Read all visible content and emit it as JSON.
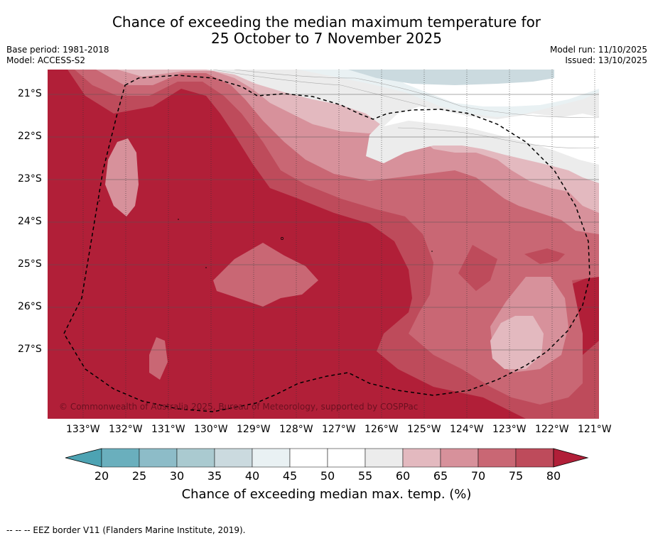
{
  "title": {
    "line1": "Chance of exceeding the median maximum temperature for",
    "line2": "25 October to 7 November 2025"
  },
  "meta": {
    "base_period": "Base period: 1981-2018",
    "model": "Model: ACCESS-S2",
    "model_run": "Model run: 11/10/2025",
    "issued": "Issued: 13/10/2025"
  },
  "map": {
    "credit": "© Commonwealth of Australia 2025, Bureau of Meteorology, supported by COSPPac",
    "lat_labels": [
      "21°S",
      "22°S",
      "23°S",
      "24°S",
      "25°S",
      "26°S",
      "27°S"
    ],
    "lon_labels": [
      "133°W",
      "132°W",
      "131°W",
      "130°W",
      "129°W",
      "128°W",
      "127°W",
      "126°W",
      "125°W",
      "124°W",
      "123°W",
      "122°W",
      "121°W"
    ],
    "lon_range": [
      -133.8,
      -121.1
    ],
    "lat_range": [
      -28.6,
      -20.4
    ]
  },
  "colorbar": {
    "ticks": [
      "20",
      "25",
      "30",
      "35",
      "40",
      "45",
      "50",
      "55",
      "60",
      "65",
      "70",
      "75",
      "80"
    ],
    "colors": [
      "#6aafbd",
      "#8dbcc8",
      "#aacad0",
      "#cbdadf",
      "#e9f1f3",
      "#ffffff",
      "#ffffff",
      "#ececec",
      "#e3b9bf",
      "#d7919b",
      "#c96774",
      "#be4b5b",
      "#b11f38"
    ],
    "under_color": "#4da3b3",
    "over_color": "#b11f38",
    "label": "Chance of exceeding median max. temp. (%)"
  },
  "legend": {
    "eez": "-- -- -- EEZ border V11 (Flanders Marine Institute, 2019)."
  }
}
